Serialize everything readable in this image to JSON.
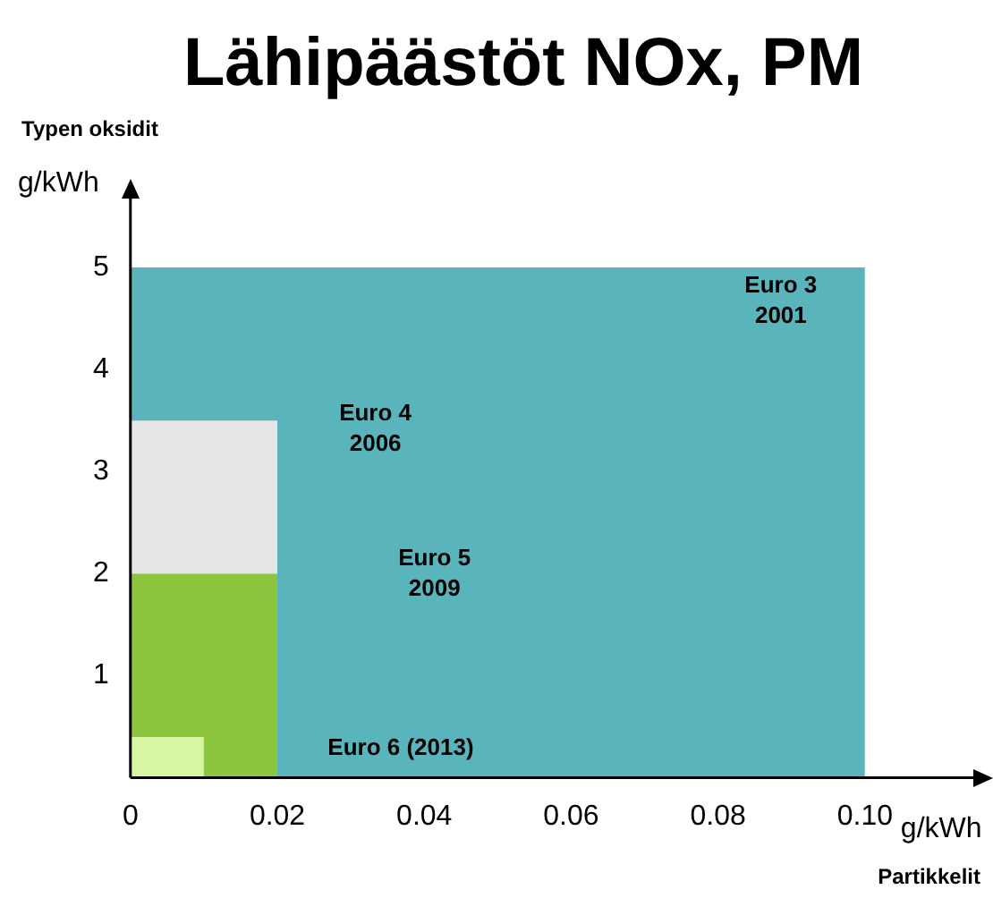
{
  "chart_data": {
    "type": "area",
    "title": "Lähipäästöt NOx, PM",
    "xlabel": "Partikkelit",
    "ylabel": "Typen oksidit",
    "series": [
      {
        "x": [
          0,
          0.1
        ],
        "values": [
          5,
          5
        ],
        "color": "#5ab4bc"
      },
      {
        "x": [
          0,
          0.02
        ],
        "values": [
          3.5,
          3.5
        ],
        "color": "#e6e6e6"
      },
      {
        "x": [
          0,
          0.02
        ],
        "values": [
          2,
          2
        ],
        "color": "#8cc63f"
      },
      {
        "x": [
          0,
          0.01
        ],
        "values": [
          0.4,
          0.4
        ],
        "color": "#d8f5a2"
      }
    ],
    "annotations": [
      "g/kWh",
      "g/kWh",
      "Euro 3\n2001",
      "Euro 4\n2006",
      "Euro 5\n2009",
      "Euro 6 (2013)"
    ],
    "xlim": [
      0,
      0.115
    ],
    "ylim": [
      0,
      5.7
    ],
    "xticks": [
      0,
      0.02,
      0.04,
      0.06,
      0.08,
      {
        "value": 0.1,
        "label": "0.10"
      }
    ],
    "yticks": [
      1,
      2,
      3,
      4,
      5
    ],
    "grid": false,
    "legend": false
  }
}
